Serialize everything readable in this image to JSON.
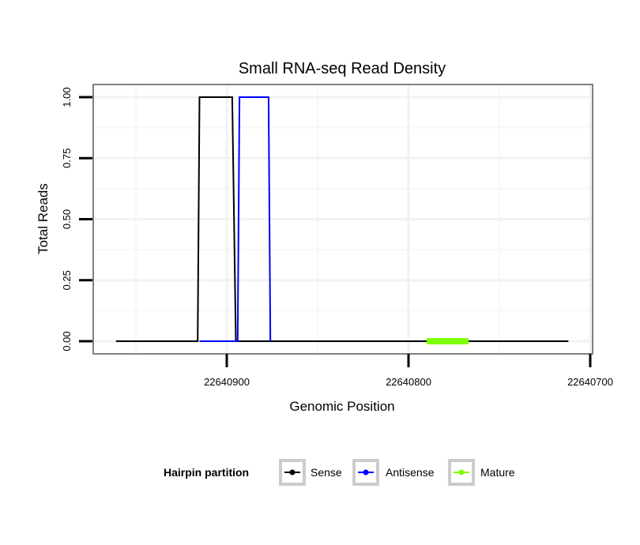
{
  "chart_data": {
    "type": "line",
    "title": "Small RNA-seq Read Density",
    "xlabel": "Genomic Position",
    "ylabel": "Total Reads",
    "xlim": [
      22640974,
      22640699
    ],
    "x_reversed": true,
    "ylim": [
      -0.05,
      1.05
    ],
    "x_ticks": [
      22640900,
      22640800,
      22640700
    ],
    "x_tick_labels": [
      "22640900",
      "22640800",
      "22640700"
    ],
    "y_ticks": [
      0,
      0.25,
      0.5,
      0.75,
      1
    ],
    "y_tick_labels": [
      "0.00",
      "0.25",
      "0.50",
      "0.75",
      "1.00"
    ],
    "grid": true,
    "legend": {
      "title": "Hairpin partition",
      "position": "bottom"
    },
    "series": [
      {
        "name": "Sense",
        "color": "#000000",
        "points": [
          [
            22640961,
            0
          ],
          [
            22640916,
            0
          ],
          [
            22640915,
            1
          ],
          [
            22640897,
            1
          ],
          [
            22640895,
            0
          ],
          [
            22640712,
            0
          ]
        ]
      },
      {
        "name": "Antisense",
        "color": "#0000ff",
        "points": [
          [
            22640915,
            0
          ],
          [
            22640894,
            0
          ],
          [
            22640893,
            1
          ],
          [
            22640877,
            1
          ],
          [
            22640876,
            0
          ]
        ]
      },
      {
        "name": "Mature",
        "color": "#7fff00",
        "points": [
          [
            22640790,
            0
          ],
          [
            22640767,
            0
          ]
        ]
      }
    ]
  }
}
